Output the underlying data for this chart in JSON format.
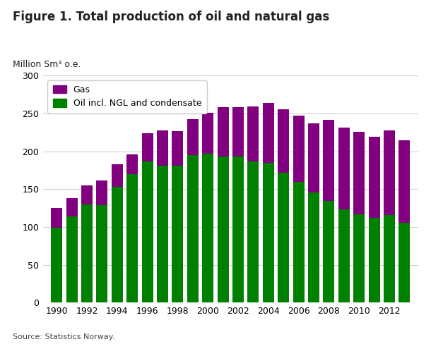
{
  "title": "Figure 1. Total production of oil and natural gas",
  "ylabel": "Million Sm³ o.e.",
  "source": "Source: Statistics Norway.",
  "years": [
    1990,
    1991,
    1992,
    1993,
    1994,
    1995,
    1996,
    1997,
    1998,
    1999,
    2000,
    2001,
    2002,
    2003,
    2004,
    2005,
    2006,
    2007,
    2008,
    2009,
    2010,
    2011,
    2012,
    2013
  ],
  "oil": [
    99,
    114,
    130,
    129,
    153,
    170,
    187,
    181,
    181,
    195,
    197,
    193,
    193,
    187,
    185,
    172,
    160,
    146,
    135,
    123,
    117,
    112,
    116,
    106
  ],
  "gas": [
    26,
    24,
    25,
    33,
    30,
    26,
    37,
    47,
    46,
    48,
    54,
    65,
    65,
    72,
    79,
    84,
    87,
    91,
    107,
    108,
    109,
    107,
    112,
    109
  ],
  "oil_color": "#008000",
  "gas_color": "#800080",
  "ylim": [
    0,
    300
  ],
  "yticks": [
    0,
    50,
    100,
    150,
    200,
    250,
    300
  ],
  "background_color": "#ffffff",
  "grid_color": "#d0d0d0",
  "bar_width": 0.75,
  "legend_labels": [
    "Gas",
    "Oil incl. NGL and condensate"
  ],
  "figsize": [
    6.1,
    4.88
  ],
  "dpi": 100,
  "title_fontsize": 12,
  "tick_fontsize": 9,
  "ylabel_fontsize": 9,
  "source_fontsize": 8,
  "legend_fontsize": 9
}
